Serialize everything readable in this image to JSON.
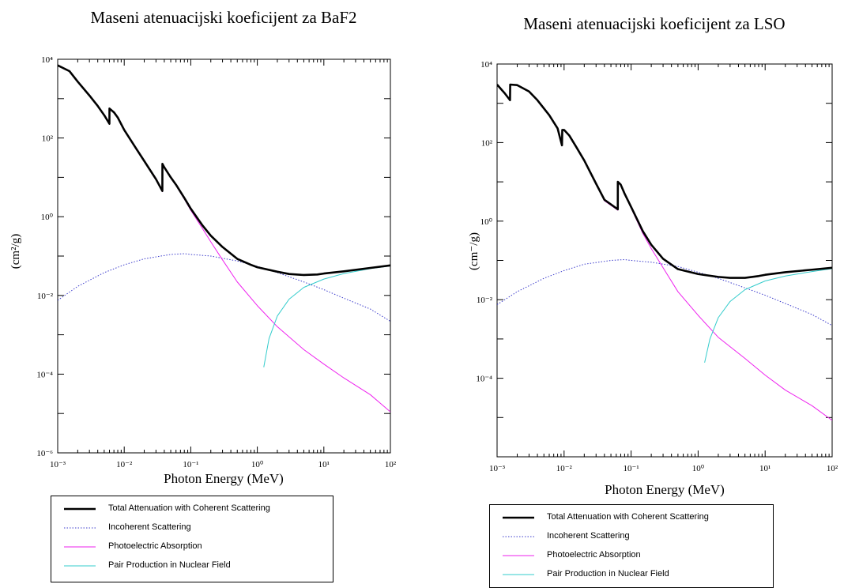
{
  "chart_data": [
    {
      "type": "line",
      "title": "Maseni atenuacijski koeficijent za BaF2",
      "xlabel": "Photon Energy (MeV)",
      "ylabel": "(cm²/g)",
      "x_scale": "log",
      "y_scale": "log",
      "xlim": [
        0.001,
        100
      ],
      "ylim": [
        1e-06,
        10000
      ],
      "x_ticks": [
        "10⁻³",
        "10⁻²",
        "10⁻¹",
        "10⁰",
        "10¹",
        "10²"
      ],
      "y_ticks": [
        "10⁻⁶",
        "10⁻⁴",
        "10⁻²",
        "10⁰",
        "10²",
        "10⁴"
      ],
      "grid": false,
      "legend_position": "below",
      "series": [
        {
          "name": "Total Attenuation with Coherent Scattering",
          "color": "#000000",
          "style": "solid-thick",
          "x": [
            0.001,
            0.0015,
            0.002,
            0.003,
            0.004,
            0.005,
            0.00599,
            0.006,
            0.007,
            0.008,
            0.01,
            0.015,
            0.02,
            0.03,
            0.0374,
            0.0375,
            0.04,
            0.05,
            0.06,
            0.08,
            0.1,
            0.15,
            0.2,
            0.3,
            0.5,
            0.8,
            1,
            2,
            3,
            5,
            8,
            10,
            20,
            50,
            100
          ],
          "y": [
            7000,
            5000,
            2700,
            1200,
            650,
            380,
            230,
            560,
            450,
            330,
            160,
            55,
            26,
            9,
            4.5,
            22,
            18,
            10,
            6.5,
            3,
            1.6,
            0.6,
            0.33,
            0.17,
            0.085,
            0.06,
            0.052,
            0.04,
            0.035,
            0.033,
            0.034,
            0.036,
            0.041,
            0.05,
            0.058
          ]
        },
        {
          "name": "Incoherent Scattering",
          "color": "#3b3bcc",
          "style": "dotted",
          "x": [
            0.001,
            0.002,
            0.005,
            0.01,
            0.02,
            0.05,
            0.08,
            0.1,
            0.2,
            0.5,
            1,
            2,
            5,
            10,
            20,
            50,
            100
          ],
          "y": [
            0.0075,
            0.017,
            0.038,
            0.06,
            0.085,
            0.11,
            0.115,
            0.11,
            0.1,
            0.075,
            0.055,
            0.038,
            0.022,
            0.014,
            0.0085,
            0.0045,
            0.0022
          ]
        },
        {
          "name": "Photoelectric Absorption",
          "color": "#ee22ee",
          "style": "solid",
          "x": [
            0.001,
            0.0015,
            0.002,
            0.003,
            0.004,
            0.005,
            0.00599,
            0.006,
            0.007,
            0.008,
            0.01,
            0.015,
            0.02,
            0.03,
            0.0374,
            0.0375,
            0.04,
            0.05,
            0.06,
            0.08,
            0.1,
            0.15,
            0.2,
            0.3,
            0.5,
            1,
            2,
            5,
            10,
            20,
            50,
            100
          ],
          "y": [
            6900,
            4900,
            2650,
            1180,
            640,
            370,
            225,
            550,
            440,
            320,
            155,
            52,
            25,
            8.5,
            4.3,
            21.5,
            17.5,
            9.6,
            6.2,
            2.8,
            1.45,
            0.5,
            0.23,
            0.08,
            0.022,
            0.0055,
            0.0016,
            0.00042,
            0.00018,
            8e-05,
            3e-05,
            1.1e-05
          ]
        },
        {
          "name": "Pair Production in Nuclear Field",
          "color": "#33cccc",
          "style": "solid",
          "x": [
            1.25,
            1.5,
            2,
            3,
            5,
            10,
            20,
            50,
            100
          ],
          "y": [
            0.00015,
            0.0008,
            0.003,
            0.008,
            0.016,
            0.026,
            0.036,
            0.048,
            0.056
          ]
        }
      ]
    },
    {
      "type": "line",
      "title": "Maseni atenuacijski koeficijent za LSO",
      "xlabel": "Photon Energy (MeV)",
      "ylabel": "(cm⁻/g)",
      "x_scale": "log",
      "y_scale": "log",
      "xlim": [
        0.001,
        100
      ],
      "ylim": [
        1e-06,
        10000
      ],
      "x_ticks": [
        "10⁻³",
        "10⁻²",
        "10⁻¹",
        "10⁰",
        "10¹",
        "10²"
      ],
      "y_ticks": [
        "10⁻⁴",
        "10⁻²",
        "10⁰",
        "10²",
        "10⁴"
      ],
      "grid": false,
      "legend_position": "below",
      "series": [
        {
          "name": "Total Attenuation with Coherent Scattering",
          "color": "#000000",
          "style": "solid-thick",
          "x": [
            0.001,
            0.0013,
            0.00156,
            0.00157,
            0.002,
            0.003,
            0.004,
            0.006,
            0.008,
            0.0093,
            0.0094,
            0.01,
            0.012,
            0.015,
            0.02,
            0.03,
            0.04,
            0.0633,
            0.0634,
            0.07,
            0.08,
            0.1,
            0.15,
            0.2,
            0.3,
            0.5,
            1,
            2,
            3,
            5,
            8,
            10,
            20,
            50,
            100
          ],
          "y": [
            3000,
            1800,
            1200,
            3000,
            2900,
            2000,
            1200,
            500,
            230,
            85,
            210,
            210,
            150,
            80,
            35,
            9,
            3.5,
            2,
            10,
            8.5,
            5,
            2.3,
            0.55,
            0.25,
            0.11,
            0.06,
            0.045,
            0.038,
            0.036,
            0.036,
            0.04,
            0.043,
            0.05,
            0.058,
            0.065
          ]
        },
        {
          "name": "Incoherent Scattering",
          "color": "#3b3bcc",
          "style": "dotted",
          "x": [
            0.001,
            0.002,
            0.005,
            0.01,
            0.02,
            0.05,
            0.08,
            0.1,
            0.2,
            0.5,
            1,
            2,
            5,
            10,
            20,
            50,
            100
          ],
          "y": [
            0.0075,
            0.016,
            0.035,
            0.055,
            0.08,
            0.1,
            0.105,
            0.1,
            0.09,
            0.07,
            0.05,
            0.035,
            0.02,
            0.013,
            0.008,
            0.0042,
            0.0022
          ]
        },
        {
          "name": "Photoelectric Absorption",
          "color": "#ee22ee",
          "style": "solid",
          "x": [
            0.001,
            0.0013,
            0.00156,
            0.00157,
            0.002,
            0.003,
            0.004,
            0.006,
            0.008,
            0.0093,
            0.0094,
            0.01,
            0.012,
            0.015,
            0.02,
            0.03,
            0.04,
            0.0633,
            0.0634,
            0.07,
            0.08,
            0.1,
            0.15,
            0.2,
            0.3,
            0.5,
            1,
            2,
            5,
            10,
            20,
            50,
            100
          ],
          "y": [
            2950,
            1780,
            1190,
            2950,
            2850,
            1980,
            1190,
            495,
            228,
            84,
            208,
            208,
            148,
            79,
            34,
            8.6,
            3.3,
            1.9,
            9.6,
            8.2,
            4.8,
            2.15,
            0.48,
            0.2,
            0.065,
            0.016,
            0.004,
            0.0011,
            0.00032,
            0.00012,
            5e-05,
            2e-05,
            8.5e-06
          ]
        },
        {
          "name": "Pair Production in Nuclear Field",
          "color": "#33cccc",
          "style": "solid",
          "x": [
            1.25,
            1.5,
            2,
            3,
            5,
            10,
            20,
            50,
            100
          ],
          "y": [
            0.00025,
            0.001,
            0.0035,
            0.009,
            0.018,
            0.03,
            0.04,
            0.052,
            0.062
          ]
        }
      ]
    }
  ]
}
